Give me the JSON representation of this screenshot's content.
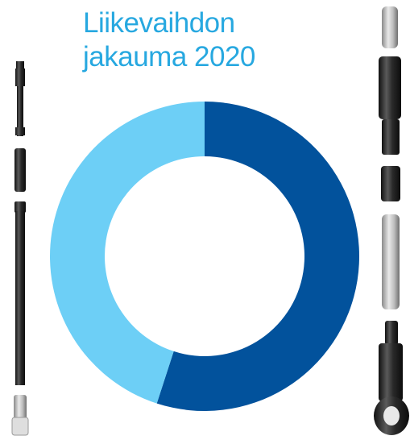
{
  "chart_data": {
    "type": "pie",
    "variant": "donut",
    "title": [
      "Liikevaihdon",
      "jakauma 2020"
    ],
    "slices": [
      {
        "value": 55,
        "color": "#02529c"
      },
      {
        "value": 45,
        "color": "#6dcff6"
      }
    ],
    "start_angle_deg": 0,
    "direction": "clockwise",
    "legend": "none",
    "data_labels": false
  },
  "decorations": {
    "left_column_icons": [
      "drill-tube-icon",
      "drill-tube-icon",
      "drill-tube-icon",
      "drill-tube-icon"
    ],
    "right_column_icons": [
      "drill-tube-icon",
      "drill-tube-icon",
      "drill-tube-icon",
      "drill-tube-icon",
      "drill-tube-icon"
    ],
    "metal_dark": "#2a2a2a",
    "metal_light": "#bdbdbd"
  }
}
